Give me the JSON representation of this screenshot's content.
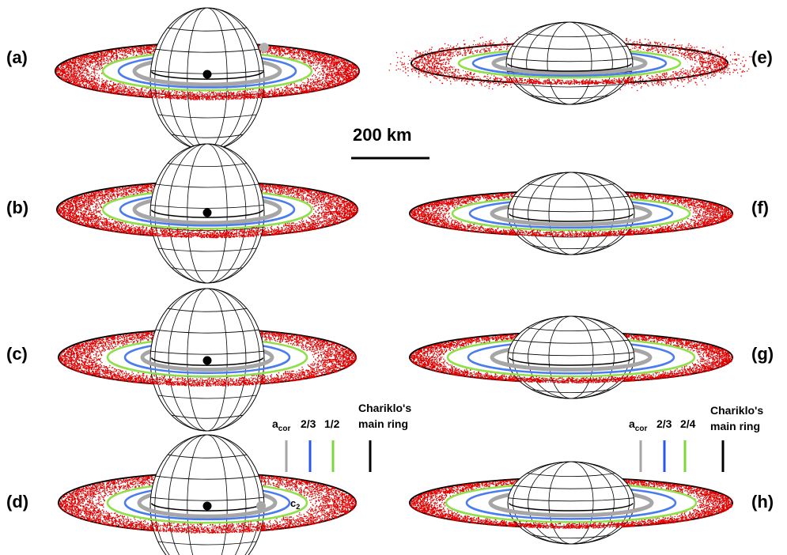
{
  "figure": {
    "panels": [
      {
        "label": "(a)",
        "body_shape": "sphere",
        "moon_marker": "black-dot",
        "extra_marker": "grey-dot"
      },
      {
        "label": "(b)",
        "body_shape": "sphere",
        "moon_marker": "black-dot"
      },
      {
        "label": "(c)",
        "body_shape": "sphere",
        "moon_marker": "black-dot"
      },
      {
        "label": "(d)",
        "body_shape": "sphere",
        "moon_marker": "black-dot",
        "annotation": "c",
        "annotation_sub": "2"
      },
      {
        "label": "(e)",
        "body_shape": "ellipsoid"
      },
      {
        "label": "(f)",
        "body_shape": "ellipsoid"
      },
      {
        "label": "(g)",
        "body_shape": "ellipsoid"
      },
      {
        "label": "(h)",
        "body_shape": "ellipsoid"
      }
    ],
    "scale_bar": {
      "label": "200 km"
    },
    "legend_left": {
      "items": [
        {
          "text": "a",
          "sub": "cor",
          "color": "#a6a6a6"
        },
        {
          "text": "2/3",
          "color": "#2b57e8"
        },
        {
          "text": "1/2",
          "color": "#7bd83a"
        },
        {
          "text": "",
          "color": "#000000"
        }
      ],
      "ring_label_line1": "Chariklo's",
      "ring_label_line2": "main ring"
    },
    "legend_right": {
      "items": [
        {
          "text": "a",
          "sub": "cor",
          "color": "#a6a6a6"
        },
        {
          "text": "2/3",
          "color": "#2b57e8"
        },
        {
          "text": "2/4",
          "color": "#7bd83a"
        },
        {
          "text": "",
          "color": "#000000"
        }
      ],
      "ring_label_line1": "Chariklo's",
      "ring_label_line2": "main ring"
    },
    "colors": {
      "particles": "#e00000",
      "corotation": "#a6a6a6",
      "resonance_2_3": "#4a7cf0",
      "resonance_outer": "#8fe04a",
      "main_ring": "#000000"
    }
  }
}
